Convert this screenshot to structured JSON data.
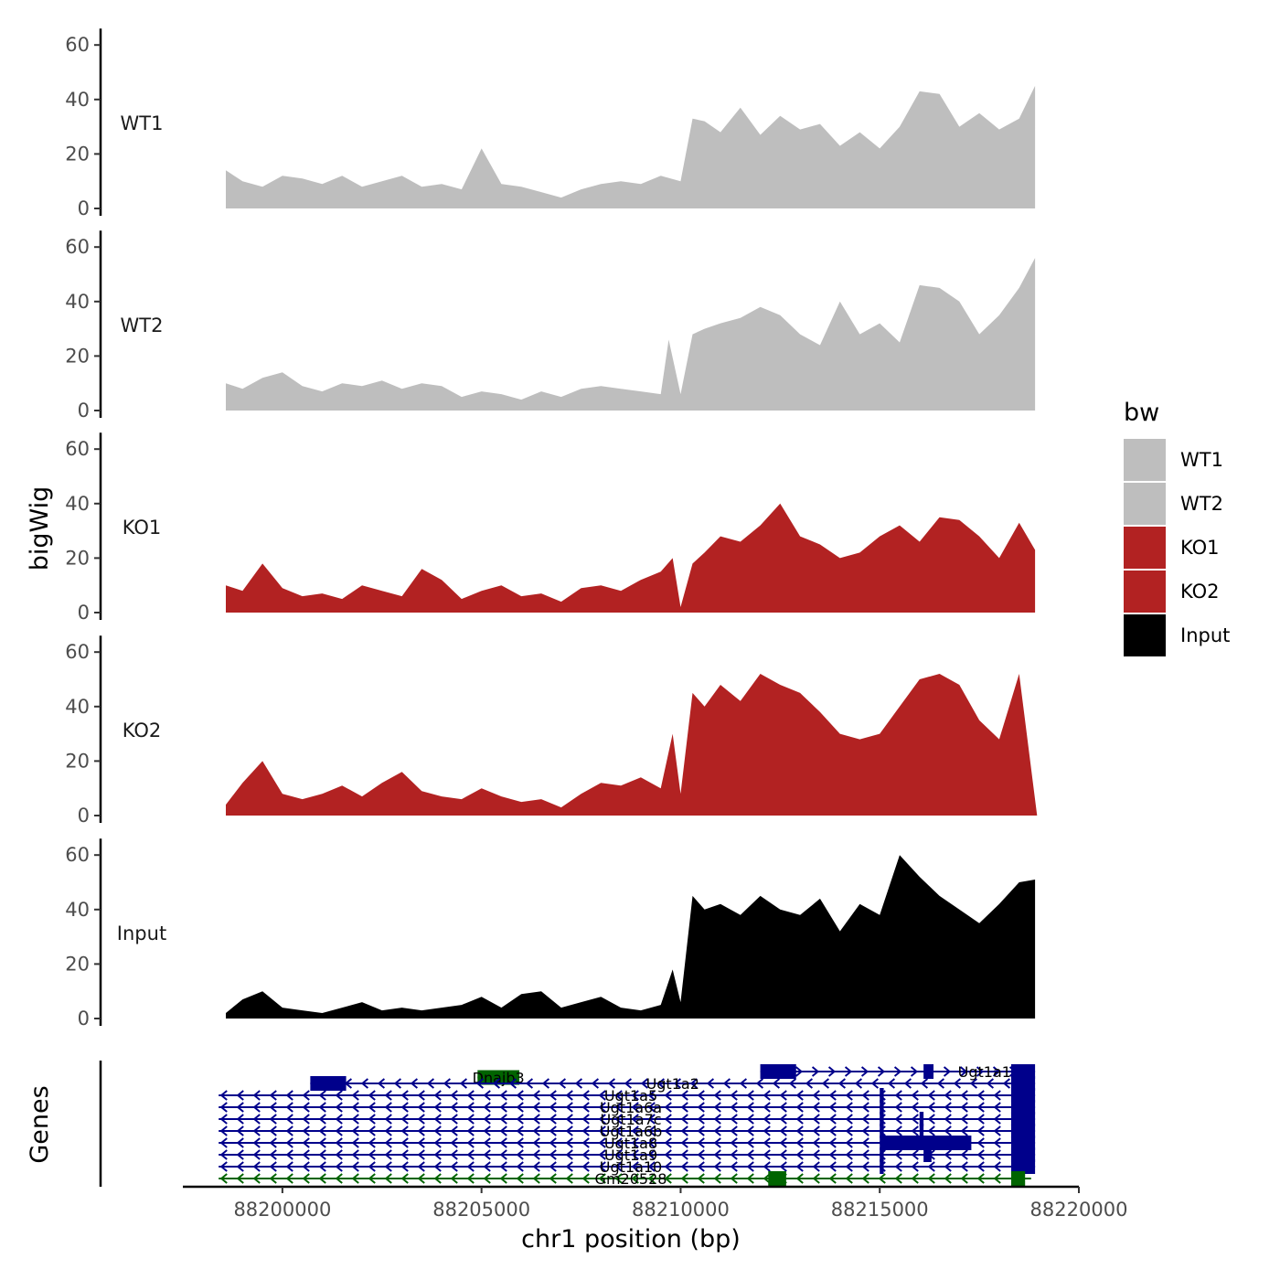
{
  "chart_data": {
    "type": "area",
    "title": "",
    "xlabel": "chr1 position (bp)",
    "ylabel": "bigWig",
    "genes_label": "Genes",
    "x_range": [
      88197500,
      88220000
    ],
    "x_ticks": [
      88200000,
      88205000,
      88210000,
      88215000,
      88220000
    ],
    "x_tick_labels": [
      "88200000",
      "88205000",
      "88210000",
      "88215000",
      "88220000"
    ],
    "y_range": [
      0,
      65
    ],
    "y_ticks": [
      0,
      20,
      40,
      60
    ],
    "y_tick_labels": [
      "0",
      "20",
      "40",
      "60"
    ],
    "legend": {
      "title": "bw",
      "position": "right",
      "entries": [
        {
          "name": "WT1",
          "color": "#bebebe"
        },
        {
          "name": "WT2",
          "color": "#bebebe"
        },
        {
          "name": "KO1",
          "color": "#b22222"
        },
        {
          "name": "KO2",
          "color": "#b22222"
        },
        {
          "name": "Input",
          "color": "#000000"
        }
      ]
    },
    "series": [
      {
        "name": "WT1",
        "color": "#bebebe",
        "x": [
          88198580,
          88199000,
          88199500,
          88200000,
          88200500,
          88201000,
          88201500,
          88202000,
          88202500,
          88203000,
          88203500,
          88204000,
          88204500,
          88205000,
          88205500,
          88206000,
          88206500,
          88207000,
          88207500,
          88208000,
          88208500,
          88209000,
          88209500,
          88210000,
          88210300,
          88210600,
          88211000,
          88211500,
          88212000,
          88212500,
          88213000,
          88213500,
          88214000,
          88214500,
          88215000,
          88215500,
          88216000,
          88216500,
          88217000,
          88217500,
          88218000,
          88218500,
          88218900
        ],
        "values": [
          14,
          10,
          8,
          12,
          11,
          9,
          12,
          8,
          10,
          12,
          8,
          9,
          7,
          22,
          9,
          8,
          6,
          4,
          7,
          9,
          10,
          9,
          12,
          10,
          33,
          32,
          28,
          37,
          27,
          34,
          29,
          31,
          23,
          28,
          22,
          30,
          43,
          42,
          30,
          35,
          29,
          33,
          45
        ]
      },
      {
        "name": "WT2",
        "color": "#bebebe",
        "x": [
          88198580,
          88199000,
          88199500,
          88200000,
          88200500,
          88201000,
          88201500,
          88202000,
          88202500,
          88203000,
          88203500,
          88204000,
          88204500,
          88205000,
          88205500,
          88206000,
          88206500,
          88207000,
          88207500,
          88208000,
          88208500,
          88209000,
          88209500,
          88209700,
          88210000,
          88210300,
          88210600,
          88211000,
          88211500,
          88212000,
          88212500,
          88213000,
          88213500,
          88214000,
          88214500,
          88215000,
          88215500,
          88216000,
          88216500,
          88217000,
          88217500,
          88218000,
          88218500,
          88218900
        ],
        "values": [
          10,
          8,
          12,
          14,
          9,
          7,
          10,
          9,
          11,
          8,
          10,
          9,
          5,
          7,
          6,
          4,
          7,
          5,
          8,
          9,
          8,
          7,
          6,
          26,
          6,
          28,
          30,
          32,
          34,
          38,
          35,
          28,
          24,
          40,
          28,
          32,
          25,
          46,
          45,
          40,
          28,
          35,
          45,
          56
        ]
      },
      {
        "name": "KO1",
        "color": "#b22222",
        "x": [
          88198580,
          88199000,
          88199500,
          88200000,
          88200500,
          88201000,
          88201500,
          88202000,
          88202500,
          88203000,
          88203500,
          88204000,
          88204500,
          88205000,
          88205500,
          88206000,
          88206500,
          88207000,
          88207500,
          88208000,
          88208500,
          88209000,
          88209500,
          88209800,
          88210000,
          88210300,
          88210600,
          88211000,
          88211500,
          88212000,
          88212500,
          88213000,
          88213500,
          88214000,
          88214500,
          88215000,
          88215500,
          88216000,
          88216500,
          88217000,
          88217500,
          88218000,
          88218500,
          88218900
        ],
        "values": [
          10,
          8,
          18,
          9,
          6,
          7,
          5,
          10,
          8,
          6,
          16,
          12,
          5,
          8,
          10,
          6,
          7,
          4,
          9,
          10,
          8,
          12,
          15,
          20,
          2,
          18,
          22,
          28,
          26,
          32,
          40,
          28,
          25,
          20,
          22,
          28,
          32,
          26,
          35,
          34,
          28,
          20,
          33,
          23
        ]
      },
      {
        "name": "KO2",
        "color": "#b22222",
        "x": [
          88198580,
          88199000,
          88199500,
          88200000,
          88200500,
          88201000,
          88201500,
          88202000,
          88202500,
          88203000,
          88203500,
          88204000,
          88204500,
          88205000,
          88205500,
          88206000,
          88206500,
          88207000,
          88207500,
          88208000,
          88208500,
          88209000,
          88209500,
          88209800,
          88210000,
          88210300,
          88210600,
          88211000,
          88211500,
          88212000,
          88212500,
          88213000,
          88213500,
          88214000,
          88214500,
          88215000,
          88215500,
          88216000,
          88216500,
          88217000,
          88217500,
          88218000,
          88218500,
          88218950
        ],
        "values": [
          4,
          12,
          20,
          8,
          6,
          8,
          11,
          7,
          12,
          16,
          9,
          7,
          6,
          10,
          7,
          5,
          6,
          3,
          8,
          12,
          11,
          14,
          10,
          30,
          8,
          45,
          40,
          48,
          42,
          52,
          48,
          45,
          38,
          30,
          28,
          30,
          40,
          50,
          52,
          48,
          35,
          28,
          52,
          0
        ]
      },
      {
        "name": "Input",
        "color": "#000000",
        "x": [
          88198580,
          88199000,
          88199500,
          88200000,
          88200500,
          88201000,
          88201500,
          88202000,
          88202500,
          88203000,
          88203500,
          88204000,
          88204500,
          88205000,
          88205500,
          88206000,
          88206500,
          88207000,
          88207500,
          88208000,
          88208500,
          88209000,
          88209500,
          88209800,
          88210000,
          88210300,
          88210600,
          88211000,
          88211500,
          88212000,
          88212500,
          88213000,
          88213500,
          88214000,
          88214500,
          88215000,
          88215500,
          88216000,
          88216500,
          88217000,
          88217500,
          88218000,
          88218500,
          88218900
        ],
        "values": [
          2,
          7,
          10,
          4,
          3,
          2,
          4,
          6,
          3,
          4,
          3,
          4,
          5,
          8,
          4,
          9,
          10,
          4,
          6,
          8,
          4,
          3,
          5,
          18,
          6,
          45,
          40,
          42,
          38,
          45,
          40,
          38,
          44,
          32,
          42,
          38,
          60,
          52,
          45,
          40,
          35,
          42,
          50,
          51
        ]
      }
    ],
    "genes": [
      {
        "name": "Ugt1a1",
        "row": 0,
        "start": 88212000,
        "end": 88218900,
        "strand": "+",
        "color": "#00008b",
        "exons": [
          [
            88212000,
            88212900
          ],
          [
            88216100,
            88216350
          ],
          [
            88218300,
            88218900
          ]
        ]
      },
      {
        "name": "Dnajb3",
        "row": 0.5,
        "start": 88204900,
        "end": 88205950,
        "strand": "-",
        "color": "#006400",
        "exons": [
          [
            88204900,
            88205950
          ]
        ]
      },
      {
        "name": "Ugt1a2",
        "row": 1,
        "start": 88200700,
        "end": 88218900,
        "strand": "-",
        "color": "#00008b",
        "exons": [
          [
            88200700,
            88201600
          ],
          [
            88218300,
            88218900
          ]
        ]
      },
      {
        "name": "Ugt1a5",
        "row": 2,
        "start": 88198400,
        "end": 88218900,
        "strand": "-",
        "color": "#00008b",
        "exons": [
          [
            88215000,
            88215100
          ],
          [
            88218300,
            88218900
          ]
        ]
      },
      {
        "name": "Ugt1a6a",
        "row": 3,
        "start": 88198400,
        "end": 88218900,
        "strand": "-",
        "color": "#00008b",
        "exons": [
          [
            88215000,
            88215100
          ],
          [
            88218300,
            88218900
          ]
        ]
      },
      {
        "name": "Ugt1a7c",
        "row": 4,
        "start": 88198400,
        "end": 88218900,
        "strand": "-",
        "color": "#00008b",
        "exons": [
          [
            88215000,
            88215100
          ],
          [
            88216000,
            88216100
          ],
          [
            88218300,
            88218900
          ]
        ]
      },
      {
        "name": "Ugt1a6b",
        "row": 5,
        "start": 88198400,
        "end": 88218900,
        "strand": "-",
        "color": "#00008b",
        "exons": [
          [
            88215000,
            88215100
          ],
          [
            88216000,
            88216100
          ],
          [
            88218300,
            88218900
          ]
        ]
      },
      {
        "name": "Ugt1a8",
        "row": 6,
        "start": 88198400,
        "end": 88218900,
        "strand": "-",
        "color": "#00008b",
        "exons": [
          [
            88215000,
            88217300
          ],
          [
            88218300,
            88218900
          ]
        ]
      },
      {
        "name": "Ugt1a9",
        "row": 7,
        "start": 88198400,
        "end": 88218900,
        "strand": "-",
        "color": "#00008b",
        "exons": [
          [
            88215000,
            88215100
          ],
          [
            88216100,
            88216300
          ],
          [
            88218300,
            88218900
          ]
        ]
      },
      {
        "name": "Ugt1a10",
        "row": 8,
        "start": 88198400,
        "end": 88218900,
        "strand": "-",
        "color": "#00008b",
        "exons": [
          [
            88215000,
            88215100
          ],
          [
            88218300,
            88218900
          ]
        ]
      },
      {
        "name": "Gm20528",
        "row": 9,
        "start": 88198400,
        "end": 88218800,
        "strand": "-",
        "color": "#006400",
        "exons": [
          [
            88212200,
            88212650
          ],
          [
            88218300,
            88218650
          ]
        ]
      }
    ]
  }
}
